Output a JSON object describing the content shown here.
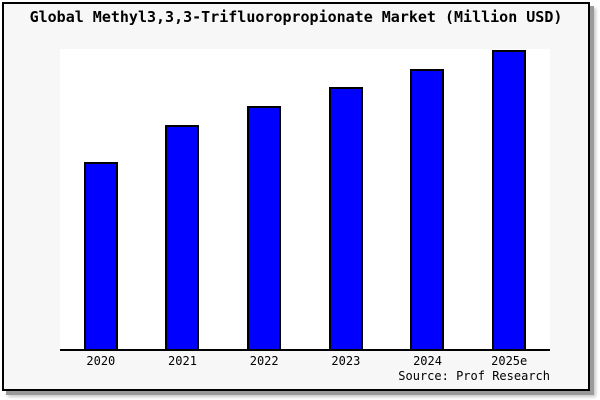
{
  "window": {
    "page_background": "#ffffff",
    "box_background": "#f7f7f7",
    "box_border_color": "#000000",
    "shadow_color": "#9a9a9a"
  },
  "chart_data": {
    "type": "bar",
    "title": "Global Methyl3,3,3-Trifluoropropionate Market (Million USD)",
    "categories": [
      "2020",
      "2021",
      "2022",
      "2023",
      "2024",
      "2025e"
    ],
    "values": [
      62.5,
      74.9,
      81.3,
      87.6,
      93.6,
      100
    ],
    "units": "relative index (no y-axis tick labels shown; tallest bar 2025e = 100)",
    "xlabel": "",
    "ylabel": "",
    "ylim": [
      0,
      100.4
    ],
    "grid": false,
    "legend": "none",
    "bar_color": "#0000ff",
    "bar_border_color": "#000000",
    "axis_color": "#000000",
    "plot_background": "#ffffff",
    "source": "Source: Prof Research"
  }
}
